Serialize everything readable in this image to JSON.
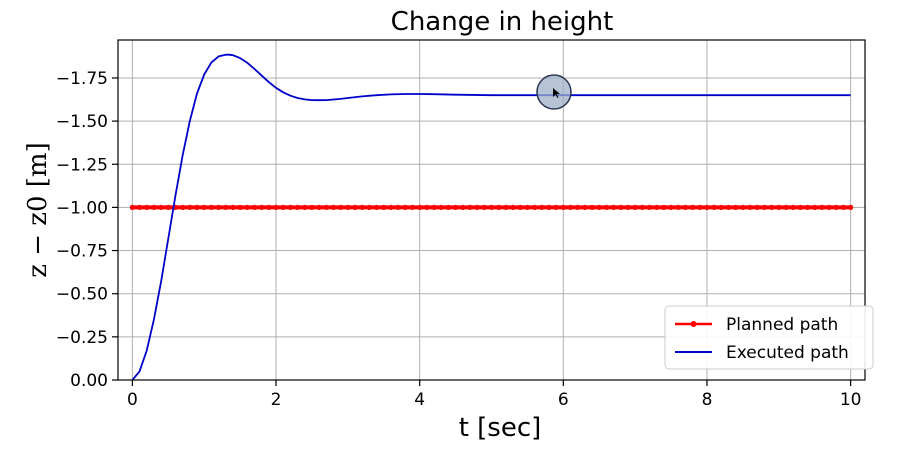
{
  "chart_data": {
    "type": "line",
    "title": "Change in height",
    "xlabel": "t [sec]",
    "ylabel": "z − z0 [m]",
    "xlim": [
      -0.2,
      10.2
    ],
    "ylim": [
      0.0,
      -1.97
    ],
    "y_inverted": true,
    "grid": true,
    "legend_position": "bottom-right",
    "x_ticks": [
      0,
      2,
      4,
      6,
      8,
      10
    ],
    "x_tick_labels": [
      "0",
      "2",
      "4",
      "6",
      "8",
      "10"
    ],
    "y_ticks": [
      -1.75,
      -1.5,
      -1.25,
      -1.0,
      -0.75,
      -0.5,
      -0.25,
      0.0
    ],
    "y_tick_labels": [
      "−1.75",
      "−1.50",
      "−1.25",
      "−1.00",
      "−0.75",
      "−0.50",
      "−0.25",
      "0.00"
    ],
    "series": [
      {
        "name": "Planned path",
        "color": "#ff0000",
        "marker": "dot",
        "x": [
          0,
          10
        ],
        "y": [
          -1.0,
          -1.0
        ]
      },
      {
        "name": "Executed path",
        "color": "#0000cc",
        "x": [
          0,
          0.1,
          0.2,
          0.3,
          0.4,
          0.5,
          0.6,
          0.7,
          0.8,
          0.9,
          1.0,
          1.1,
          1.2,
          1.3,
          1.35,
          1.4,
          1.5,
          1.6,
          1.7,
          1.8,
          1.9,
          2.0,
          2.1,
          2.2,
          2.3,
          2.4,
          2.5,
          2.6,
          2.7,
          2.8,
          2.9,
          3.0,
          3.2,
          3.4,
          3.6,
          3.8,
          4.0,
          4.2,
          4.5,
          5.0,
          5.5,
          6.0,
          7.0,
          8.0,
          9.0,
          10.0
        ],
        "y": [
          0.0,
          -0.05,
          -0.17,
          -0.35,
          -0.57,
          -0.82,
          -1.07,
          -1.3,
          -1.5,
          -1.66,
          -1.77,
          -1.84,
          -1.875,
          -1.885,
          -1.885,
          -1.882,
          -1.865,
          -1.838,
          -1.802,
          -1.764,
          -1.726,
          -1.693,
          -1.667,
          -1.647,
          -1.634,
          -1.626,
          -1.622,
          -1.621,
          -1.622,
          -1.625,
          -1.629,
          -1.634,
          -1.643,
          -1.65,
          -1.655,
          -1.657,
          -1.657,
          -1.656,
          -1.653,
          -1.65,
          -1.65,
          -1.65,
          -1.65,
          -1.65,
          -1.65,
          -1.65
        ]
      }
    ]
  }
}
